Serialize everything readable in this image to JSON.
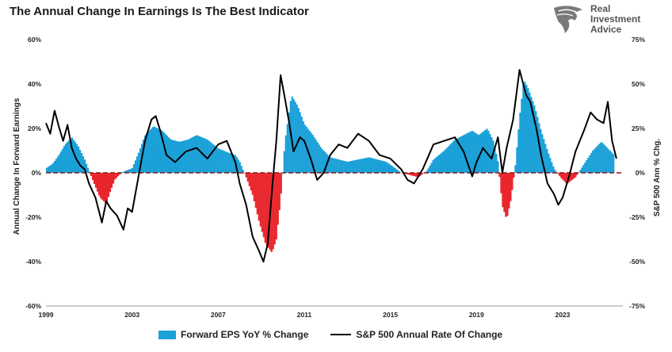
{
  "page": {
    "title": "The Annual Change In Earnings Is The Best Indicator",
    "brand": {
      "line1": "Real",
      "line2": "Investment",
      "line3": "Advice",
      "logo_icon": "eagle-head-icon"
    }
  },
  "chart_data": {
    "type": "area",
    "title": "The Annual Change In Earnings Is The Best Indicator",
    "xlabel": "",
    "ylabel_left": "Annual Change In Forward Earnings",
    "ylabel_right": "S&P 500  Ann % Chg.",
    "xlim": [
      1999,
      2025.8
    ],
    "ylim_left": [
      -60,
      60
    ],
    "ylim_right": [
      -75,
      75
    ],
    "x_ticks": [
      1999,
      2003,
      2007,
      2011,
      2015,
      2019,
      2023
    ],
    "y_ticks_left": [
      60,
      40,
      20,
      0,
      -20,
      -40,
      -60
    ],
    "y_ticks_left_labels": [
      "60%",
      "40%",
      "20%",
      "0%",
      "-20%",
      "-40%",
      "-60%"
    ],
    "y_ticks_right": [
      75,
      50,
      25,
      0,
      -25,
      -50,
      -75
    ],
    "y_ticks_right_labels": [
      "75%",
      "50%",
      "25%",
      "0%",
      "-25%",
      "-50%",
      "-75%"
    ],
    "grid": false,
    "legend_position": "bottom",
    "colors": {
      "positive": "#1ba1d8",
      "negative": "#e8262c",
      "line": "#000000",
      "zero_line": "#8b1a1a"
    },
    "series": [
      {
        "name": "Forward EPS YoY % Change",
        "axis": "left",
        "x": [
          1999.0,
          1999.3,
          1999.6,
          1999.9,
          2000.2,
          2000.5,
          2000.8,
          2001.0,
          2001.2,
          2001.5,
          2001.8,
          2002.0,
          2002.2,
          2002.5,
          2002.7,
          2003.0,
          2003.3,
          2003.6,
          2004.0,
          2004.4,
          2004.8,
          2005.2,
          2005.6,
          2006.0,
          2006.5,
          2007.0,
          2007.5,
          2007.8,
          2008.0,
          2008.3,
          2008.6,
          2008.9,
          2009.2,
          2009.5,
          2009.7,
          2009.9,
          2010.1,
          2010.4,
          2010.7,
          2011.0,
          2011.4,
          2011.8,
          2012.2,
          2012.6,
          2013.0,
          2013.5,
          2014.0,
          2014.4,
          2014.8,
          2015.1,
          2015.5,
          2015.9,
          2016.3,
          2016.7,
          2017.0,
          2017.5,
          2018.0,
          2018.4,
          2018.8,
          2019.1,
          2019.5,
          2019.8,
          2020.0,
          2020.2,
          2020.4,
          2020.6,
          2020.8,
          2021.0,
          2021.2,
          2021.4,
          2021.7,
          2022.0,
          2022.3,
          2022.6,
          2022.9,
          2023.2,
          2023.6,
          2024.0,
          2024.4,
          2024.8,
          2025.1,
          2025.4
        ],
        "values": [
          2,
          4,
          8,
          13,
          16,
          12,
          6,
          1,
          -4,
          -11,
          -14,
          -8,
          -3,
          0,
          1,
          2,
          9,
          17,
          21,
          19,
          15,
          14,
          15,
          17,
          15,
          11,
          9,
          8,
          5,
          -2,
          -10,
          -22,
          -32,
          -36,
          -30,
          -12,
          14,
          35,
          30,
          22,
          17,
          11,
          7,
          6,
          5,
          6,
          7,
          6,
          5,
          3,
          0,
          -1,
          -2,
          1,
          6,
          10,
          15,
          17,
          19,
          17,
          20,
          14,
          5,
          -15,
          -21,
          -12,
          3,
          25,
          42,
          38,
          30,
          19,
          10,
          2,
          -2,
          -5,
          -2,
          4,
          10,
          14,
          11,
          8
        ]
      },
      {
        "name": "S&P 500 Annual Rate Of Change",
        "axis": "right",
        "x": [
          1999.0,
          1999.2,
          1999.4,
          1999.6,
          1999.8,
          2000.0,
          2000.2,
          2000.4,
          2000.6,
          2000.8,
          2001.0,
          2001.3,
          2001.6,
          2001.8,
          2002.0,
          2002.3,
          2002.6,
          2002.8,
          2003.0,
          2003.3,
          2003.6,
          2003.9,
          2004.1,
          2004.3,
          2004.6,
          2005.0,
          2005.5,
          2006.0,
          2006.5,
          2007.0,
          2007.4,
          2007.8,
          2008.0,
          2008.3,
          2008.6,
          2008.9,
          2009.1,
          2009.3,
          2009.5,
          2009.7,
          2009.9,
          2010.1,
          2010.3,
          2010.5,
          2010.8,
          2011.0,
          2011.3,
          2011.6,
          2011.9,
          2012.2,
          2012.6,
          2013.0,
          2013.5,
          2014.0,
          2014.5,
          2015.0,
          2015.5,
          2015.8,
          2016.1,
          2016.5,
          2017.0,
          2017.5,
          2018.0,
          2018.4,
          2018.8,
          2019.0,
          2019.3,
          2019.7,
          2020.0,
          2020.2,
          2020.4,
          2020.7,
          2021.0,
          2021.3,
          2021.5,
          2021.8,
          2022.0,
          2022.3,
          2022.6,
          2022.8,
          2023.0,
          2023.3,
          2023.6,
          2024.0,
          2024.3,
          2024.6,
          2024.9,
          2025.1,
          2025.3,
          2025.5
        ],
        "values": [
          28,
          22,
          35,
          26,
          18,
          27,
          14,
          8,
          4,
          2,
          -6,
          -14,
          -28,
          -16,
          -20,
          -24,
          -32,
          -20,
          -22,
          -2,
          18,
          30,
          32,
          24,
          10,
          6,
          12,
          14,
          8,
          16,
          18,
          6,
          -6,
          -18,
          -36,
          -44,
          -50,
          -40,
          -10,
          18,
          55,
          42,
          28,
          12,
          20,
          18,
          8,
          -4,
          0,
          10,
          16,
          14,
          22,
          18,
          10,
          8,
          2,
          -4,
          -6,
          2,
          16,
          18,
          20,
          12,
          -2,
          6,
          14,
          8,
          20,
          0,
          14,
          30,
          58,
          44,
          40,
          24,
          10,
          -6,
          -12,
          -18,
          -14,
          -2,
          12,
          24,
          34,
          30,
          28,
          40,
          18,
          8
        ]
      }
    ]
  }
}
